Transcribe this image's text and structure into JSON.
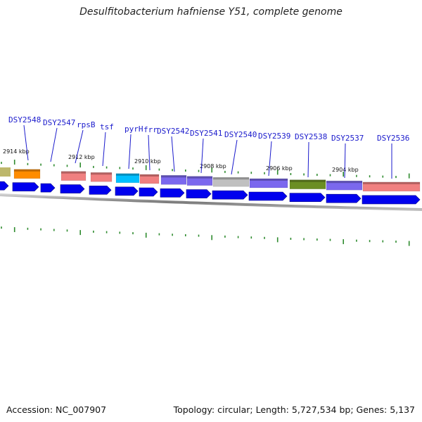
{
  "title": "Desulfitobacterium hafniense Y51, complete genome",
  "accession": "Accession: NC_007907",
  "topology": "Topology: circular; Length: 5,727,534 bp; Genes: 5,137",
  "colors": {
    "label": "#1a1acc",
    "tick": "#2e8b2e",
    "cds": "#0000ee",
    "backbone": "#888888"
  },
  "kbp_markers": [
    {
      "label": "2914 kbp",
      "pos_kbp": 2914
    },
    {
      "label": "2912 kbp",
      "pos_kbp": 2912
    },
    {
      "label": "2910 kbp",
      "pos_kbp": 2910
    },
    {
      "label": "2908 kbp",
      "pos_kbp": 2908
    },
    {
      "label": "2906 kbp",
      "pos_kbp": 2906
    },
    {
      "label": "2904 kbp",
      "pos_kbp": 2904
    }
  ],
  "genes": [
    {
      "name": "DSY2548",
      "color": "#ff8c00"
    },
    {
      "name": "DSY2547",
      "color": "#ff8c00"
    },
    {
      "name": "rpsB",
      "color": "#f08080"
    },
    {
      "name": "tsf",
      "color": "#f08080"
    },
    {
      "name": "pyrH",
      "color": "#00bfff"
    },
    {
      "name": "frr",
      "color": "#f08080"
    },
    {
      "name": "DSY2542",
      "color": "#7b68ee"
    },
    {
      "name": "DSY2541",
      "color": "#7b68ee"
    },
    {
      "name": "DSY2540",
      "color": "#c0c0c0"
    },
    {
      "name": "DSY2539",
      "color": "#7b68ee"
    },
    {
      "name": "DSY2538",
      "color": "#6b8e23"
    },
    {
      "name": "DSY2537",
      "color": "#7b68ee"
    },
    {
      "name": "DSY2536",
      "color": "#f08080"
    }
  ]
}
